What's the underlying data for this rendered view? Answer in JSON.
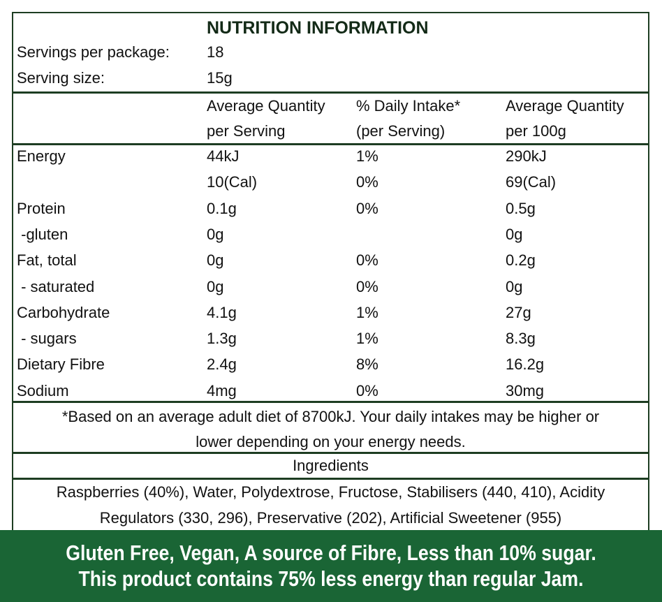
{
  "title": "NUTRITION INFORMATION",
  "servings": {
    "label": "Servings per package:",
    "value": "18"
  },
  "serving_size": {
    "label": "Serving size:",
    "value": "15g"
  },
  "headers": [
    {
      "line1": "Average Quantity",
      "line2": "per Serving"
    },
    {
      "line1": "% Daily Intake*",
      "line2": "(per Serving)"
    },
    {
      "line1": "Average Quantity",
      "line2": "per 100g"
    }
  ],
  "rows": [
    {
      "name": "Energy",
      "serving": "44kJ",
      "di": "1%",
      "per100": "290kJ"
    },
    {
      "name": "",
      "serving": "10(Cal)",
      "di": "0%",
      "per100": "69(Cal)"
    },
    {
      "name": "Protein",
      "serving": "0.1g",
      "di": "0%",
      "per100": "0.5g"
    },
    {
      "name": " -gluten",
      "serving": "0g",
      "di": "",
      "per100": "0g"
    },
    {
      "name": "Fat, total",
      "serving": "0g",
      "di": "0%",
      "per100": "0.2g"
    },
    {
      "name": " - saturated",
      "serving": "0g",
      "di": "0%",
      "per100": "0g"
    },
    {
      "name": "Carbohydrate",
      "serving": "4.1g",
      "di": "1%",
      "per100": "27g"
    },
    {
      "name": " - sugars",
      "serving": "1.3g",
      "di": "1%",
      "per100": "8.3g"
    },
    {
      "name": "Dietary Fibre",
      "serving": "2.4g",
      "di": "8%",
      "per100": "16.2g"
    },
    {
      "name": "Sodium",
      "serving": "4mg",
      "di": "0%",
      "per100": "30mg"
    }
  ],
  "footnote": {
    "line1": "*Based on an average adult diet of 8700kJ. Your daily intakes may be higher or",
    "line2": "lower depending on your energy needs."
  },
  "ingredients": {
    "heading": "Ingredients",
    "line1": "Raspberries (40%), Water, Polydextrose, Fructose, Stabilisers (440, 410), Acidity",
    "line2": "Regulators (330, 296), Preservative (202), Artificial Sweetener (955)"
  },
  "banner": {
    "line1": "Gluten Free, Vegan, A source of Fibre, Less than 10% sugar.",
    "line2": "This product contains 75% less energy than regular Jam."
  },
  "colors": {
    "border": "#1d3d22",
    "banner": "#1a6535"
  }
}
